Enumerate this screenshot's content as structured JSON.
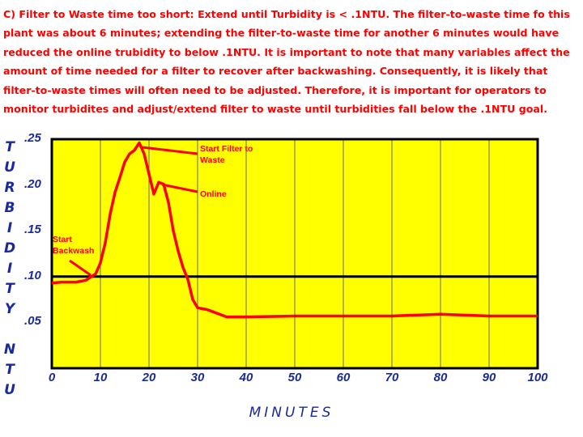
{
  "chart_data": {
    "type": "line",
    "title": "C)  Filter to Waste time too short:  Extend until Turbidity is < .1NTU.  The filter-to-waste time fo this plant was about 6 minutes; extending the filter-to-waste time for another 6 minutes would have reduced the online trubidity to below .1NTU.  It is important to note that many variables affect the amount of time needed for a filter to recover after backwashing.  Consequently, it is likely that filter-to-waste times will often need to be adjusted.  Therefore, it is important for operators to monitor turbidites and adjust/extend filter to waste until turbidities fall below the .1NTU goal.",
    "y_label": "TURBIDITY NTU",
    "x_label": "MINUTES",
    "annotations": [
      "Start Backwash",
      "Start Filter to Waste",
      "Online"
    ],
    "x": [
      0,
      2,
      5,
      7,
      9,
      10,
      11,
      12,
      13,
      14,
      15,
      16,
      17,
      18,
      19,
      20,
      21,
      22,
      23,
      24,
      25,
      26,
      27,
      28,
      29,
      30,
      32,
      34,
      36,
      40,
      50,
      60,
      70,
      80,
      90,
      100
    ],
    "values": [
      0.093,
      0.094,
      0.094,
      0.096,
      0.103,
      0.115,
      0.137,
      0.168,
      0.192,
      0.208,
      0.225,
      0.234,
      0.238,
      0.246,
      0.234,
      0.212,
      0.19,
      0.203,
      0.201,
      0.181,
      0.15,
      0.128,
      0.11,
      0.097,
      0.075,
      0.066,
      0.064,
      0.06,
      0.056,
      0.056,
      0.057,
      0.057,
      0.057,
      0.059,
      0.057,
      0.057
    ],
    "color": "#ff0000",
    "background": "#ffff00",
    "reference_line": 0.1,
    "xlim": [
      0,
      100
    ],
    "ylim": [
      0,
      0.25
    ],
    "xticks": [
      0,
      10,
      20,
      30,
      40,
      50,
      60,
      70,
      80,
      90,
      100
    ],
    "yticks": [
      {
        "value": 0.05,
        "label": ".05"
      },
      {
        "value": 0.1,
        "label": ".10"
      },
      {
        "value": 0.15,
        "label": ".15"
      },
      {
        "value": 0.2,
        "label": ".20"
      },
      {
        "value": 0.25,
        "label": ".25"
      }
    ],
    "grid": true
  }
}
